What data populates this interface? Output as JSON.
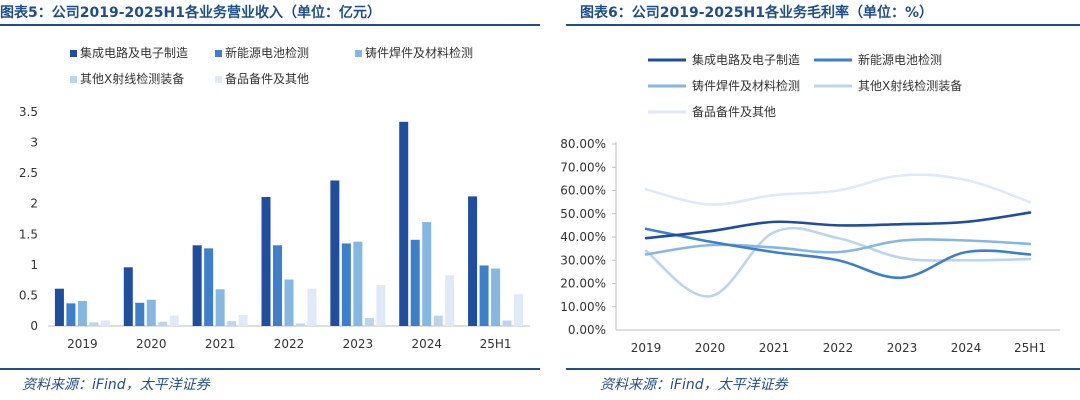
{
  "left": {
    "title": "图表5：公司2019-2025H1各业务营业收入（单位：亿元）",
    "source": "资料来源：iFind，太平洋证券"
  },
  "right": {
    "title": "图表6：公司2019-2025H1各业务毛利率（单位：%）",
    "source": "资料来源：iFind，太平洋证券"
  },
  "chart_data": [
    {
      "type": "bar",
      "categories": [
        "2019",
        "2020",
        "2021",
        "2022",
        "2023",
        "2024",
        "25H1"
      ],
      "ylim": [
        0,
        3.5
      ],
      "yticks": [
        "0",
        "0.5",
        "1",
        "1.5",
        "2",
        "2.5",
        "3",
        "3.5"
      ],
      "legend_position": "top",
      "series": [
        {
          "name": "集成电路及电子制造",
          "color": "#1f4e9e",
          "values": [
            0.61,
            0.96,
            1.32,
            2.11,
            2.38,
            3.34,
            2.12
          ]
        },
        {
          "name": "新能源电池检测",
          "color": "#3d7fcb",
          "values": [
            0.37,
            0.38,
            1.27,
            1.32,
            1.35,
            1.41,
            0.99
          ]
        },
        {
          "name": "铸件焊件及材料检测",
          "color": "#86b6e2",
          "values": [
            0.41,
            0.43,
            0.6,
            0.76,
            1.38,
            1.7,
            0.94
          ]
        },
        {
          "name": "其他X射线检测装备",
          "color": "#bcd5ee",
          "values": [
            0.06,
            0.07,
            0.08,
            0.04,
            0.13,
            0.17,
            0.09
          ]
        },
        {
          "name": "备品备件及其他",
          "color": "#deeaf7",
          "values": [
            0.09,
            0.17,
            0.18,
            0.61,
            0.67,
            0.83,
            0.52
          ]
        }
      ]
    },
    {
      "type": "line",
      "x": [
        "2019",
        "2020",
        "2021",
        "2022",
        "2023",
        "2024",
        "25H1"
      ],
      "ylim": [
        0,
        80
      ],
      "yticks": [
        "0.00%",
        "10.00%",
        "20.00%",
        "30.00%",
        "40.00%",
        "50.00%",
        "60.00%",
        "70.00%",
        "80.00%"
      ],
      "legend_position": "top",
      "series": [
        {
          "name": "集成电路及电子制造",
          "color": "#1f4e9e",
          "values": [
            39.5,
            42.5,
            46.5,
            45.0,
            45.5,
            46.5,
            50.5
          ]
        },
        {
          "name": "新能源电池检测",
          "color": "#3d7fcb",
          "values": [
            43.5,
            38.0,
            33.5,
            30.0,
            22.5,
            33.5,
            32.5
          ]
        },
        {
          "name": "铸件焊件及材料检测",
          "color": "#86b6e2",
          "values": [
            32.5,
            36.5,
            35.5,
            33.5,
            38.5,
            38.5,
            37.0
          ]
        },
        {
          "name": "其他X射线检测装备",
          "color": "#bcd5ee",
          "values": [
            34.0,
            14.5,
            42.0,
            39.5,
            31.0,
            30.0,
            30.5
          ]
        },
        {
          "name": "备品备件及其他",
          "color": "#deeaf7",
          "values": [
            60.5,
            54.0,
            58.0,
            60.0,
            66.5,
            64.5,
            55.0
          ]
        }
      ]
    }
  ]
}
